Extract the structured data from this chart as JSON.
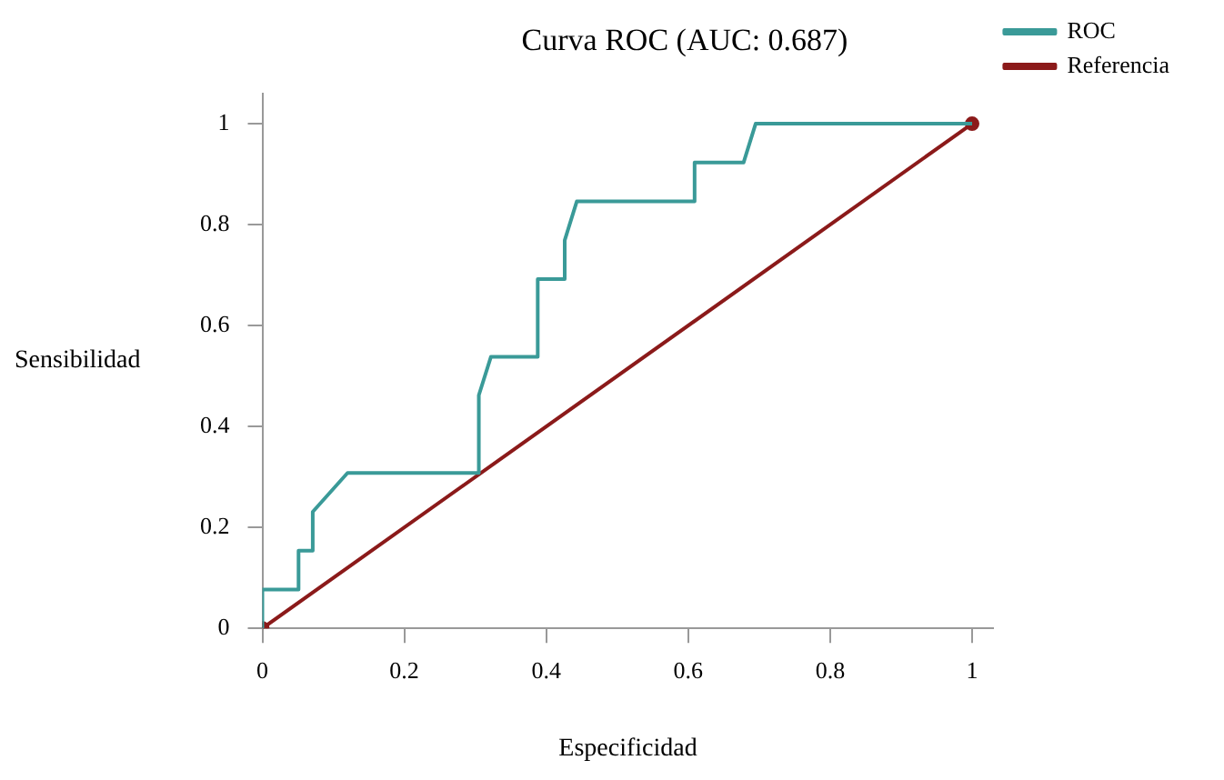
{
  "chart_data": {
    "type": "line",
    "title": "Curva ROC (AUC: 0.687)",
    "xlabel": "Especificidad",
    "ylabel": "Sensibilidad",
    "xlim": [
      0,
      1.03
    ],
    "ylim": [
      0,
      1.06
    ],
    "xticks": [
      0,
      0.2,
      0.4,
      0.6,
      0.8,
      1
    ],
    "yticks": [
      0,
      0.2,
      0.4,
      0.6,
      0.8,
      1
    ],
    "grid": false,
    "legend": "top right",
    "series": [
      {
        "name": "ROC",
        "color": "#3a9a98",
        "marker": "none",
        "x": [
          0,
          0,
          0.051,
          0.051,
          0.071,
          0.071,
          0.12,
          0.305,
          0.305,
          0.322,
          0.388,
          0.388,
          0.426,
          0.426,
          0.443,
          0.609,
          0.609,
          0.678,
          0.695,
          1
        ],
        "values": [
          0,
          0.077,
          0.077,
          0.154,
          0.154,
          0.231,
          0.308,
          0.308,
          0.462,
          0.538,
          0.538,
          0.692,
          0.692,
          0.769,
          0.846,
          0.846,
          0.923,
          0.923,
          1,
          1
        ]
      },
      {
        "name": "Referencia",
        "color": "#8b1a1a",
        "marker": "circle",
        "x": [
          0,
          1
        ],
        "values": [
          0,
          1
        ]
      }
    ]
  }
}
